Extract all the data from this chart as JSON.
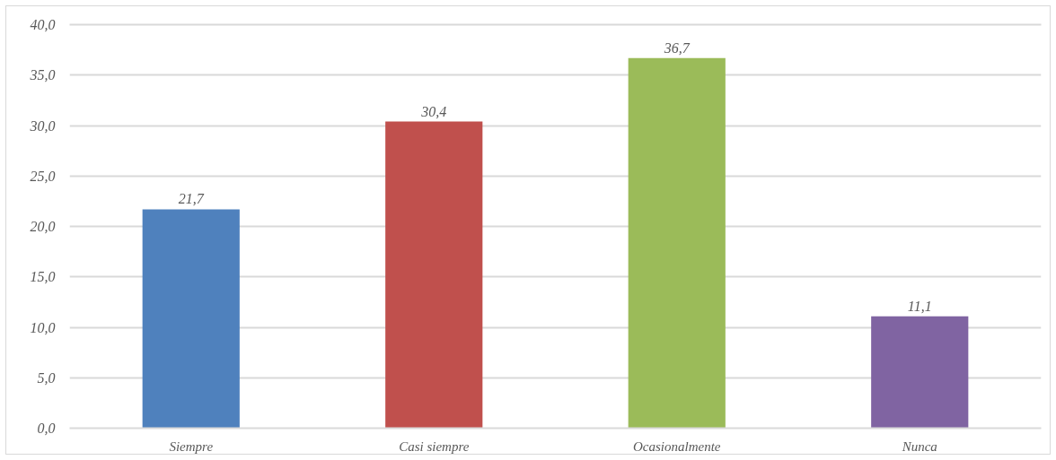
{
  "chart_data": {
    "type": "bar",
    "categories": [
      "Siempre",
      "Casi siempre",
      "Ocasionalmente",
      "Nunca"
    ],
    "values": [
      21.7,
      30.4,
      36.7,
      11.1
    ],
    "colors": [
      "#4f81bd",
      "#c0504d",
      "#9bbb59",
      "#8064a2"
    ],
    "value_labels": [
      "21,7",
      "30,4",
      "36,7",
      "11,1"
    ],
    "ylim": [
      0,
      40
    ],
    "yticks": [
      {
        "value": 0,
        "label": "0,0"
      },
      {
        "value": 5,
        "label": "5,0"
      },
      {
        "value": 10,
        "label": "10,0"
      },
      {
        "value": 15,
        "label": "15,0"
      },
      {
        "value": 20,
        "label": "20,0"
      },
      {
        "value": 25,
        "label": "25,0"
      },
      {
        "value": 30,
        "label": "30,0"
      },
      {
        "value": 35,
        "label": "35,0"
      },
      {
        "value": 40,
        "label": "40,0"
      }
    ],
    "grid": "y"
  }
}
